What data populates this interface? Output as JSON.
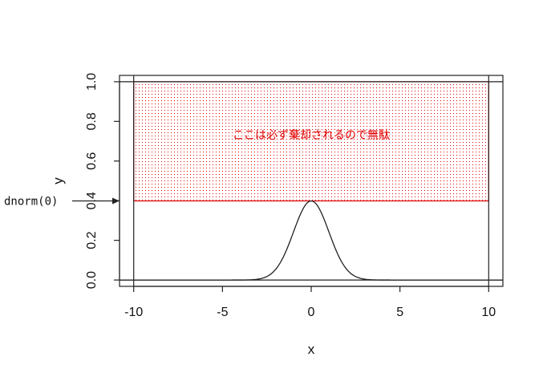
{
  "chart_data": {
    "type": "line",
    "function": "dnorm(x)",
    "xlim": [
      -10.8,
      10.8
    ],
    "ylim": [
      -0.032,
      1.032
    ],
    "xticks": [
      -10,
      -5,
      0,
      5,
      10
    ],
    "xtick_labels": [
      "-10",
      "-5",
      "0",
      "5",
      "10"
    ],
    "yticks": [
      0.0,
      0.2,
      0.4,
      0.6,
      0.8,
      1.0
    ],
    "ytick_labels": [
      "0.0",
      "0.2",
      "0.4",
      "0.6",
      "0.8",
      "1.0"
    ],
    "xlabel": "x",
    "ylabel": "y",
    "grid": false,
    "colors": {
      "curve": "#222222",
      "rejection": "#e00000",
      "axes": "#222222"
    },
    "rejection_region": {
      "xmin": -10,
      "xmax": 10,
      "ymin": 0.3989,
      "ymax": 1.0,
      "text": "ここは必ず棄却されるので無駄"
    },
    "vertical_lines_x": [
      -10,
      10
    ],
    "horizontal_lines_y": [
      0,
      1
    ],
    "dnorm0_label": "dnorm(0)",
    "dnorm0_value": 0.3989
  }
}
